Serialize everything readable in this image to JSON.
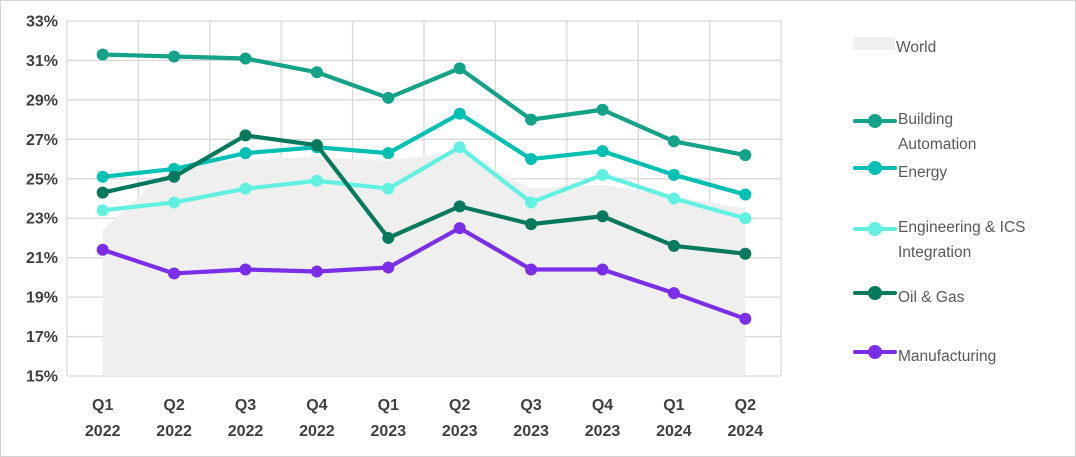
{
  "chart_data": {
    "type": "line",
    "title": "",
    "categories": [
      [
        "Q1",
        "2022"
      ],
      [
        "Q2",
        "2022"
      ],
      [
        "Q3",
        "2022"
      ],
      [
        "Q4",
        "2022"
      ],
      [
        "Q1",
        "2023"
      ],
      [
        "Q2",
        "2023"
      ],
      [
        "Q3",
        "2023"
      ],
      [
        "Q4",
        "2023"
      ],
      [
        "Q1",
        "2024"
      ],
      [
        "Q2",
        "2024"
      ]
    ],
    "y_axis": {
      "min": 15,
      "max": 33,
      "step": 2,
      "tick_suffix": "%"
    },
    "grid": true,
    "legend_position": "right",
    "series": [
      {
        "name": "World",
        "label_lines": [
          "World"
        ],
        "kind": "area",
        "color": "#efefef",
        "values": [
          22.4,
          25.7,
          26.0,
          26.1,
          25.9,
          26.4,
          24.5,
          24.7,
          24.1,
          23.5
        ]
      },
      {
        "name": "Building Automation",
        "label_lines": [
          "Building",
          "Automation"
        ],
        "kind": "line",
        "color": "#14a288",
        "values": [
          31.3,
          31.2,
          31.1,
          30.4,
          29.1,
          30.6,
          28.0,
          28.5,
          26.9,
          26.2
        ]
      },
      {
        "name": "Energy",
        "label_lines": [
          "Energy"
        ],
        "kind": "line",
        "color": "#00bfb3",
        "values": [
          25.1,
          25.5,
          26.3,
          26.6,
          26.3,
          28.3,
          26.0,
          26.4,
          25.2,
          24.2
        ]
      },
      {
        "name": "Engineering & ICS Integration",
        "label_lines": [
          "Engineering & ICS",
          "Integration"
        ],
        "kind": "line",
        "color": "#62f1e1",
        "values": [
          23.4,
          23.8,
          24.5,
          24.9,
          24.5,
          26.6,
          23.8,
          25.2,
          24.0,
          23.0
        ]
      },
      {
        "name": "Oil & Gas",
        "label_lines": [
          "Oil & Gas"
        ],
        "kind": "line",
        "color": "#03795d",
        "values": [
          24.3,
          25.1,
          27.2,
          26.7,
          22.0,
          23.6,
          22.7,
          23.1,
          21.6,
          21.2
        ]
      },
      {
        "name": "Manufacturing",
        "label_lines": [
          "Manufacturing"
        ],
        "kind": "line",
        "color": "#7a2ee8",
        "values": [
          21.4,
          20.2,
          20.4,
          20.3,
          20.5,
          22.5,
          20.4,
          20.4,
          19.2,
          17.9
        ]
      }
    ]
  },
  "colors": {
    "grid": "#d9d9d9",
    "axis_text": "#3f3f3f",
    "legend_text": "#595959",
    "background": "#ffffff",
    "frame_border": "#d4d4d4"
  }
}
